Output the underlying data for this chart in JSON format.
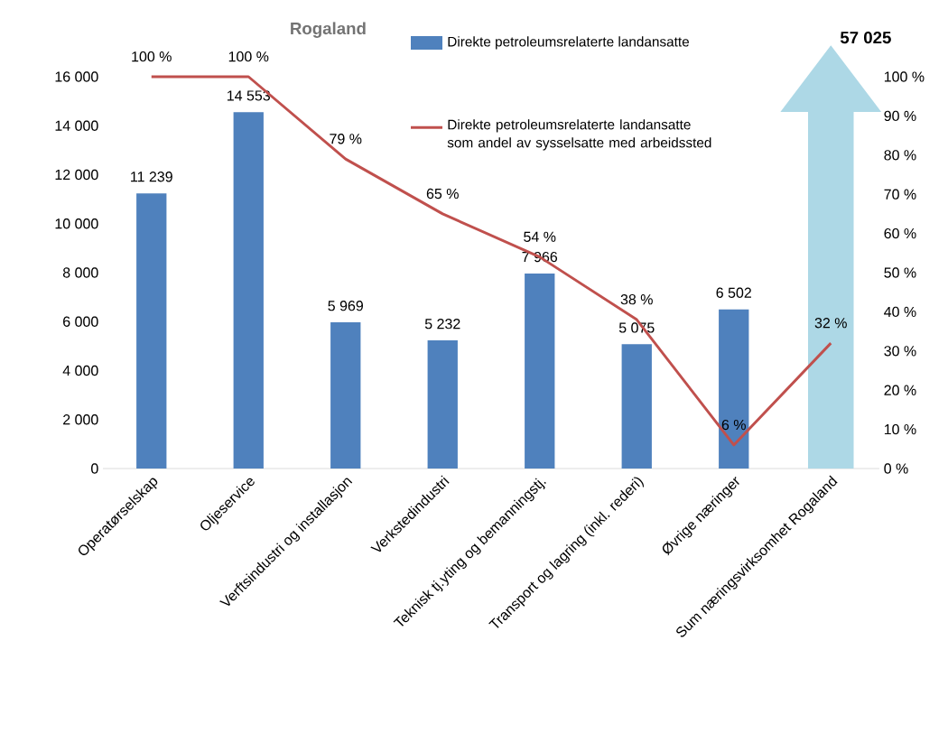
{
  "chart_data": {
    "type": "bar",
    "title": "Rogaland",
    "categories": [
      "Operatørselskap",
      "Oljeservice",
      "Verftsindustri og installasjon",
      "Verkstedindustri",
      "Teknisk tj.yting og bemanningstj.",
      "Transport og lagring (inkl. rederi)",
      "Øvrige næringer",
      "Sum næringsvirksomhet Rogaland"
    ],
    "series": [
      {
        "name": "Direkte petroleumsrelaterte landansatte",
        "type": "bar",
        "color": "#4f81bd",
        "values": [
          11239,
          14553,
          5969,
          5232,
          7966,
          5075,
          6502,
          null
        ],
        "value_labels": [
          "11 239",
          "14 553",
          "5 969",
          "5 232",
          "7 966",
          "5 075",
          "6 502",
          null
        ]
      },
      {
        "name": "Direkte petroleumsrelaterte landansatte som andel av sysselsatte med arbeidssted",
        "type": "line",
        "axis": "y2",
        "color": "#c0504d",
        "values": [
          100,
          100,
          79,
          65,
          54,
          38,
          6,
          32
        ],
        "value_labels": [
          "100 %",
          "100 %",
          "79 %",
          "65 %",
          "54 %",
          "38 %",
          "6 %",
          "32 %"
        ]
      }
    ],
    "ylim": [
      0,
      16000
    ],
    "yticks": [
      0,
      {
        "value": 2000,
        "label": "2 000"
      },
      {
        "value": 4000,
        "label": "4 000"
      },
      {
        "value": 6000,
        "label": "6 000"
      },
      {
        "value": 8000,
        "label": "8 000"
      },
      {
        "value": 10000,
        "label": "10 000"
      },
      {
        "value": 12000,
        "label": "12 000"
      },
      {
        "value": 14000,
        "label": "14 000"
      },
      {
        "value": 16000,
        "label": "16 000"
      }
    ],
    "y2lim": [
      0,
      100
    ],
    "y2ticks": [
      {
        "value": 0,
        "label": "0 %"
      },
      {
        "value": 10,
        "label": "10 %"
      },
      {
        "value": 20,
        "label": "20 %"
      },
      {
        "value": 30,
        "label": "30 %"
      },
      {
        "value": 40,
        "label": "40 %"
      },
      {
        "value": 50,
        "label": "50 %"
      },
      {
        "value": 60,
        "label": "60 %"
      },
      {
        "value": 70,
        "label": "70 %"
      },
      {
        "value": 80,
        "label": "80 %"
      },
      {
        "value": 90,
        "label": "90 %"
      },
      {
        "value": 100,
        "label": "100 %"
      }
    ],
    "legend": "top",
    "annotations": [
      "57 025"
    ]
  }
}
